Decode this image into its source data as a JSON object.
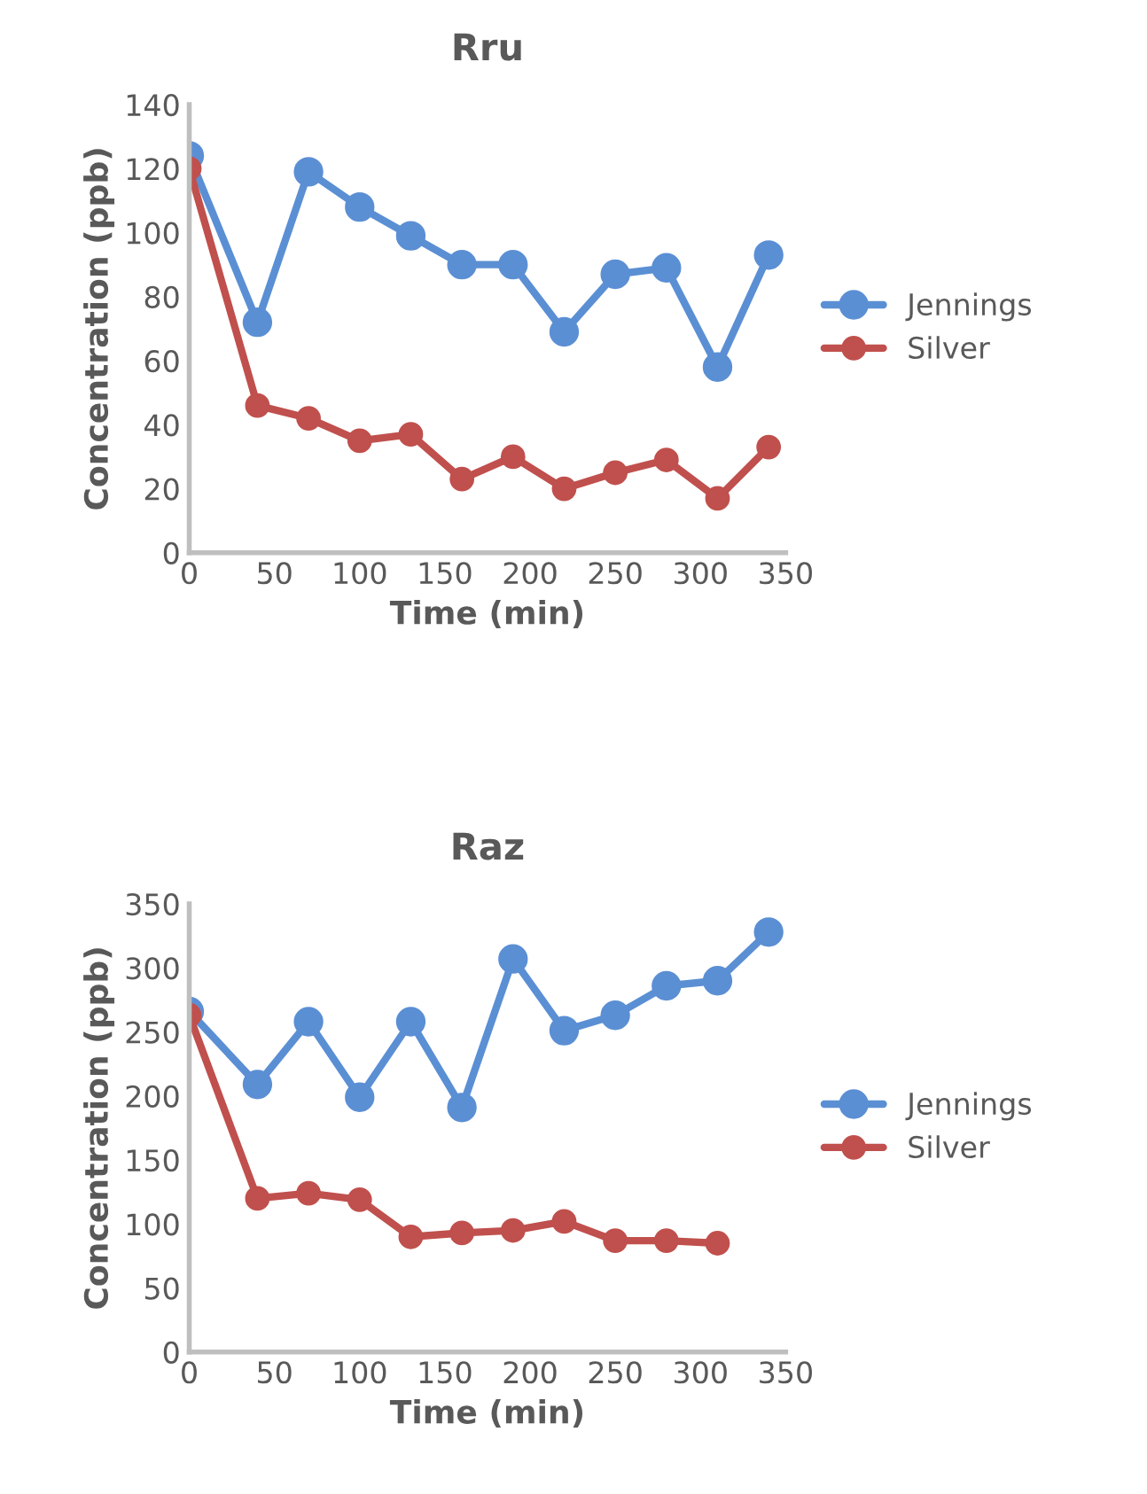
{
  "chart_data": [
    {
      "type": "line",
      "title": "Rru",
      "xlabel": "Time (min)",
      "ylabel": "Concentration (ppb)",
      "x": [
        0,
        40,
        70,
        100,
        130,
        160,
        190,
        220,
        250,
        280,
        310,
        340
      ],
      "xlim": [
        0,
        350
      ],
      "xticks": [
        0,
        50,
        100,
        150,
        200,
        250,
        300,
        350
      ],
      "ylim": [
        0,
        140
      ],
      "yticks": [
        0,
        20,
        40,
        60,
        80,
        100,
        120,
        140
      ],
      "grid": false,
      "legend": "right",
      "marker": "circle",
      "line_style": "solid",
      "series": [
        {
          "name": "Jennings",
          "color": "#5b8fd4",
          "values": [
            124,
            72,
            119,
            108,
            99,
            90,
            90,
            69,
            87,
            89,
            58,
            93
          ]
        },
        {
          "name": "Silver",
          "color": "#c0504d",
          "values": [
            120,
            46,
            42,
            35,
            37,
            23,
            30,
            20,
            25,
            29,
            17,
            33
          ]
        }
      ]
    },
    {
      "type": "line",
      "title": "Raz",
      "xlabel": "Time (min)",
      "ylabel": "Concentration (ppb)",
      "x": [
        0,
        40,
        70,
        100,
        130,
        160,
        190,
        220,
        250,
        280,
        310,
        340
      ],
      "xlim": [
        0,
        350
      ],
      "xticks": [
        0,
        50,
        100,
        150,
        200,
        250,
        300,
        350
      ],
      "ylim": [
        0,
        350
      ],
      "yticks": [
        0,
        50,
        100,
        150,
        200,
        250,
        300,
        350
      ],
      "grid": false,
      "legend": "right",
      "marker": "circle",
      "line_style": "solid",
      "series": [
        {
          "name": "Jennings",
          "color": "#5b8fd4",
          "values": [
            266,
            209,
            258,
            199,
            258,
            191,
            307,
            251,
            263,
            286,
            290,
            328
          ]
        },
        {
          "name": "Silver",
          "color": "#c0504d",
          "values": [
            263,
            120,
            124,
            119,
            90,
            93,
            95,
            102,
            87,
            87,
            85,
            null
          ]
        }
      ]
    }
  ]
}
